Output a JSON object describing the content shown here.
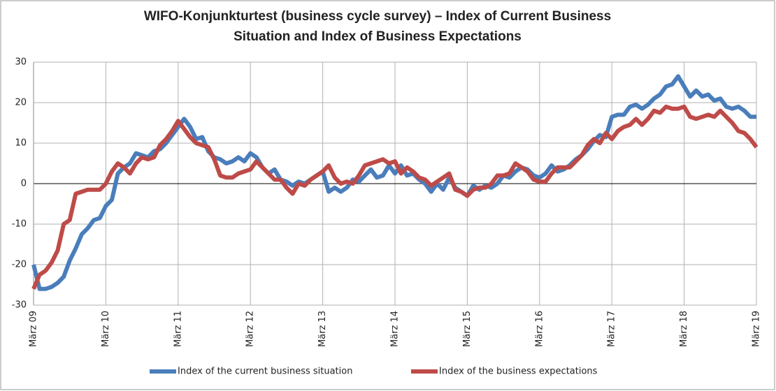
{
  "chart_data": {
    "type": "line",
    "title": [
      "WIFO-Konjunkturtest (business cycle survey) – Index of Current Business",
      "Situation and Index of Business Expectations"
    ],
    "categories": [
      "März 09",
      null,
      null,
      null,
      null,
      null,
      null,
      null,
      null,
      null,
      null,
      null,
      "März 10",
      null,
      null,
      null,
      null,
      null,
      null,
      null,
      null,
      null,
      null,
      null,
      "März 11",
      null,
      null,
      null,
      null,
      null,
      null,
      null,
      null,
      null,
      null,
      null,
      "März 12",
      null,
      null,
      null,
      null,
      null,
      null,
      null,
      null,
      null,
      null,
      null,
      "März 13",
      null,
      null,
      null,
      null,
      null,
      null,
      null,
      null,
      null,
      null,
      null,
      "März 14",
      null,
      null,
      null,
      null,
      null,
      null,
      null,
      null,
      null,
      null,
      null,
      "März 15",
      null,
      null,
      null,
      null,
      null,
      null,
      null,
      null,
      null,
      null,
      null,
      "März 16",
      null,
      null,
      null,
      null,
      null,
      null,
      null,
      null,
      null,
      null,
      null,
      "März 17",
      null,
      null,
      null,
      null,
      null,
      null,
      null,
      null,
      null,
      null,
      null,
      "März 18",
      null,
      null,
      null,
      null,
      null,
      null,
      null,
      null,
      null,
      null,
      null,
      "März 19"
    ],
    "series": [
      {
        "name": "Index of the current business situation",
        "color": "#4a7ebb",
        "values": [
          -20,
          -26,
          -26,
          -25.5,
          -24.5,
          -23,
          -19,
          -16,
          -12.5,
          -11,
          -9,
          -8.5,
          -5.5,
          -4,
          2.5,
          4,
          5,
          7.5,
          7,
          6.5,
          8,
          8.5,
          10,
          12,
          14,
          16,
          14,
          11,
          11.5,
          8,
          6.5,
          6,
          5,
          5.5,
          6.5,
          5.5,
          7.5,
          6.5,
          4,
          2.5,
          3.5,
          1,
          0.5,
          -0.5,
          0.5,
          0,
          1,
          2,
          3,
          -2,
          -1,
          -2,
          -1,
          1,
          0.5,
          2,
          3.5,
          1.5,
          2,
          4.5,
          2.5,
          4.5,
          2,
          2.5,
          1,
          0,
          -2,
          0,
          -1.5,
          1.5,
          -1,
          -2,
          -3,
          -0.5,
          -1.5,
          -0.5,
          -1,
          0,
          2,
          1.5,
          3,
          4,
          3.5,
          2,
          1.5,
          2.5,
          4.5,
          3,
          3.5,
          4.5,
          6,
          7,
          8.5,
          10.5,
          12,
          11.5,
          16.5,
          17,
          17,
          19,
          19.5,
          18.5,
          19.5,
          21,
          22,
          24,
          24.5,
          26.5,
          24,
          21.5,
          23,
          21.5,
          22,
          20.5,
          21,
          19,
          18.5,
          19,
          18,
          16.5,
          16.5
        ]
      },
      {
        "name": "Index of the business expectations",
        "color": "#be4b48",
        "values": [
          -26,
          -22.5,
          -21.5,
          -19.5,
          -16.5,
          -10,
          -9,
          -2.5,
          -2,
          -1.5,
          -1.5,
          -1.5,
          0,
          3,
          5,
          4,
          2.5,
          5,
          6.5,
          6,
          6.5,
          9.5,
          11,
          13,
          15.5,
          13.5,
          11.5,
          10,
          9.5,
          9,
          6,
          2,
          1.5,
          1.5,
          2.5,
          3,
          3.5,
          5.5,
          4,
          2.5,
          1,
          1,
          -1,
          -2.5,
          0,
          -0.5,
          1,
          2,
          3,
          4.5,
          1.5,
          0,
          0.5,
          0,
          2,
          4.5,
          5,
          5.5,
          6,
          5,
          5.5,
          2.5,
          4,
          3,
          1.5,
          1,
          -0.5,
          0.5,
          1.5,
          2.5,
          -1.5,
          -2,
          -3,
          -1.5,
          -1,
          -1,
          0,
          2,
          2,
          2.5,
          5,
          4,
          3,
          1,
          0.5,
          0.5,
          2.5,
          4,
          4,
          4,
          5.5,
          7,
          9.5,
          11,
          10,
          12.5,
          11,
          13,
          14,
          14.5,
          16,
          14.5,
          16,
          18,
          17.5,
          19,
          18.5,
          18.5,
          19,
          16.5,
          16,
          16.5,
          17,
          16.5,
          18,
          16.5,
          15,
          13,
          12.5,
          11,
          9
        ]
      }
    ],
    "ylim": [
      -30,
      30
    ],
    "yticks": [
      -30,
      -20,
      -10,
      0,
      10,
      20,
      30
    ],
    "grid": true,
    "legend": "bottom"
  }
}
